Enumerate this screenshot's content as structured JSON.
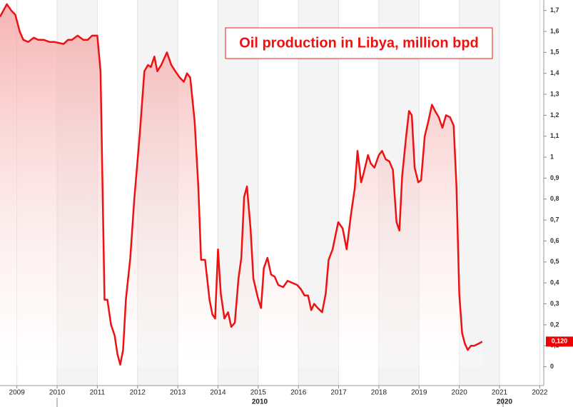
{
  "chart_data": {
    "type": "area",
    "title": "Oil production in Libya, million bpd",
    "color": "#ee1111",
    "x": [
      2008.58,
      2008.75,
      2008.86,
      2008.96,
      2009.07,
      2009.16,
      2009.28,
      2009.42,
      2009.53,
      2009.67,
      2009.81,
      2009.93,
      2010.16,
      2010.27,
      2010.37,
      2010.51,
      2010.65,
      2010.76,
      2010.87,
      2011.0,
      2011.08,
      2011.13,
      2011.18,
      2011.25,
      2011.34,
      2011.43,
      2011.5,
      2011.57,
      2011.64,
      2011.71,
      2011.82,
      2011.92,
      2012.06,
      2012.17,
      2012.26,
      2012.33,
      2012.42,
      2012.49,
      2012.59,
      2012.73,
      2012.84,
      2012.94,
      2013.05,
      2013.15,
      2013.23,
      2013.31,
      2013.42,
      2013.51,
      2013.58,
      2013.68,
      2013.79,
      2013.86,
      2013.93,
      2014.0,
      2014.07,
      2014.16,
      2014.25,
      2014.33,
      2014.42,
      2014.51,
      2014.58,
      2014.65,
      2014.72,
      2014.81,
      2014.88,
      2014.99,
      2015.07,
      2015.14,
      2015.23,
      2015.32,
      2015.41,
      2015.5,
      2015.62,
      2015.73,
      2015.85,
      2015.97,
      2016.06,
      2016.15,
      2016.24,
      2016.32,
      2016.39,
      2016.48,
      2016.59,
      2016.68,
      2016.75,
      2016.85,
      2016.99,
      2017.1,
      2017.2,
      2017.31,
      2017.4,
      2017.47,
      2017.56,
      2017.63,
      2017.73,
      2017.8,
      2017.89,
      2018.0,
      2018.08,
      2018.17,
      2018.26,
      2018.35,
      2018.44,
      2018.51,
      2018.58,
      2018.68,
      2018.75,
      2018.82,
      2018.89,
      2018.98,
      2019.05,
      2019.14,
      2019.23,
      2019.32,
      2019.4,
      2019.49,
      2019.58,
      2019.67,
      2019.77,
      2019.86,
      2019.93,
      2020.0,
      2020.07,
      2020.14,
      2020.21,
      2020.29,
      2020.37,
      2020.48,
      2020.57
    ],
    "values": [
      1.67,
      1.73,
      1.7,
      1.68,
      1.6,
      1.56,
      1.55,
      1.57,
      1.56,
      1.56,
      1.55,
      1.55,
      1.54,
      1.56,
      1.56,
      1.58,
      1.56,
      1.56,
      1.58,
      1.58,
      1.41,
      0.86,
      0.32,
      0.32,
      0.2,
      0.15,
      0.06,
      0.01,
      0.08,
      0.32,
      0.52,
      0.8,
      1.12,
      1.41,
      1.44,
      1.43,
      1.48,
      1.41,
      1.44,
      1.5,
      1.44,
      1.41,
      1.38,
      1.36,
      1.4,
      1.38,
      1.17,
      0.86,
      0.51,
      0.51,
      0.32,
      0.25,
      0.23,
      0.56,
      0.35,
      0.23,
      0.26,
      0.19,
      0.21,
      0.42,
      0.52,
      0.81,
      0.86,
      0.66,
      0.42,
      0.33,
      0.28,
      0.47,
      0.52,
      0.44,
      0.43,
      0.39,
      0.38,
      0.41,
      0.4,
      0.39,
      0.37,
      0.34,
      0.34,
      0.27,
      0.3,
      0.28,
      0.26,
      0.35,
      0.51,
      0.56,
      0.69,
      0.66,
      0.56,
      0.73,
      0.85,
      1.03,
      0.88,
      0.93,
      1.01,
      0.97,
      0.95,
      1.01,
      1.03,
      0.99,
      0.98,
      0.94,
      0.69,
      0.65,
      0.91,
      1.1,
      1.22,
      1.2,
      0.95,
      0.88,
      0.89,
      1.1,
      1.17,
      1.25,
      1.22,
      1.19,
      1.14,
      1.2,
      1.19,
      1.15,
      0.86,
      0.35,
      0.16,
      0.11,
      0.08,
      0.1,
      0.1,
      0.11,
      0.12
    ],
    "last_value_label": "0,120",
    "xlim": [
      2008.58,
      2022.1
    ],
    "xticks": [
      2009,
      2010,
      2011,
      2012,
      2013,
      2014,
      2015,
      2016,
      2017,
      2018,
      2019,
      2020,
      2021,
      2022
    ],
    "x_group_labels": [
      "2010",
      "2020"
    ],
    "ylim": [
      -0.09,
      1.75
    ],
    "yticks": [
      0,
      {
        "value": 0.1,
        "label": "0,1"
      },
      {
        "value": 0.2,
        "label": "0,2"
      },
      {
        "value": 0.3,
        "label": "0,3"
      },
      {
        "value": 0.4,
        "label": "0,4"
      },
      {
        "value": 0.5,
        "label": "0,5"
      },
      {
        "value": 0.6,
        "label": "0,6"
      },
      {
        "value": 0.7,
        "label": "0,7"
      },
      {
        "value": 0.8,
        "label": "0,8"
      },
      {
        "value": 0.9,
        "label": "0,9"
      },
      1,
      {
        "value": 1.1,
        "label": "1,1"
      },
      {
        "value": 1.2,
        "label": "1,2"
      },
      {
        "value": 1.3,
        "label": "1,3"
      },
      {
        "value": 1.4,
        "label": "1,4"
      },
      {
        "value": 1.5,
        "label": "1,5"
      },
      {
        "value": 1.6,
        "label": "1,6"
      },
      {
        "value": 1.7,
        "label": "1,7"
      }
    ],
    "y_axis_side": "right",
    "grid": true
  }
}
